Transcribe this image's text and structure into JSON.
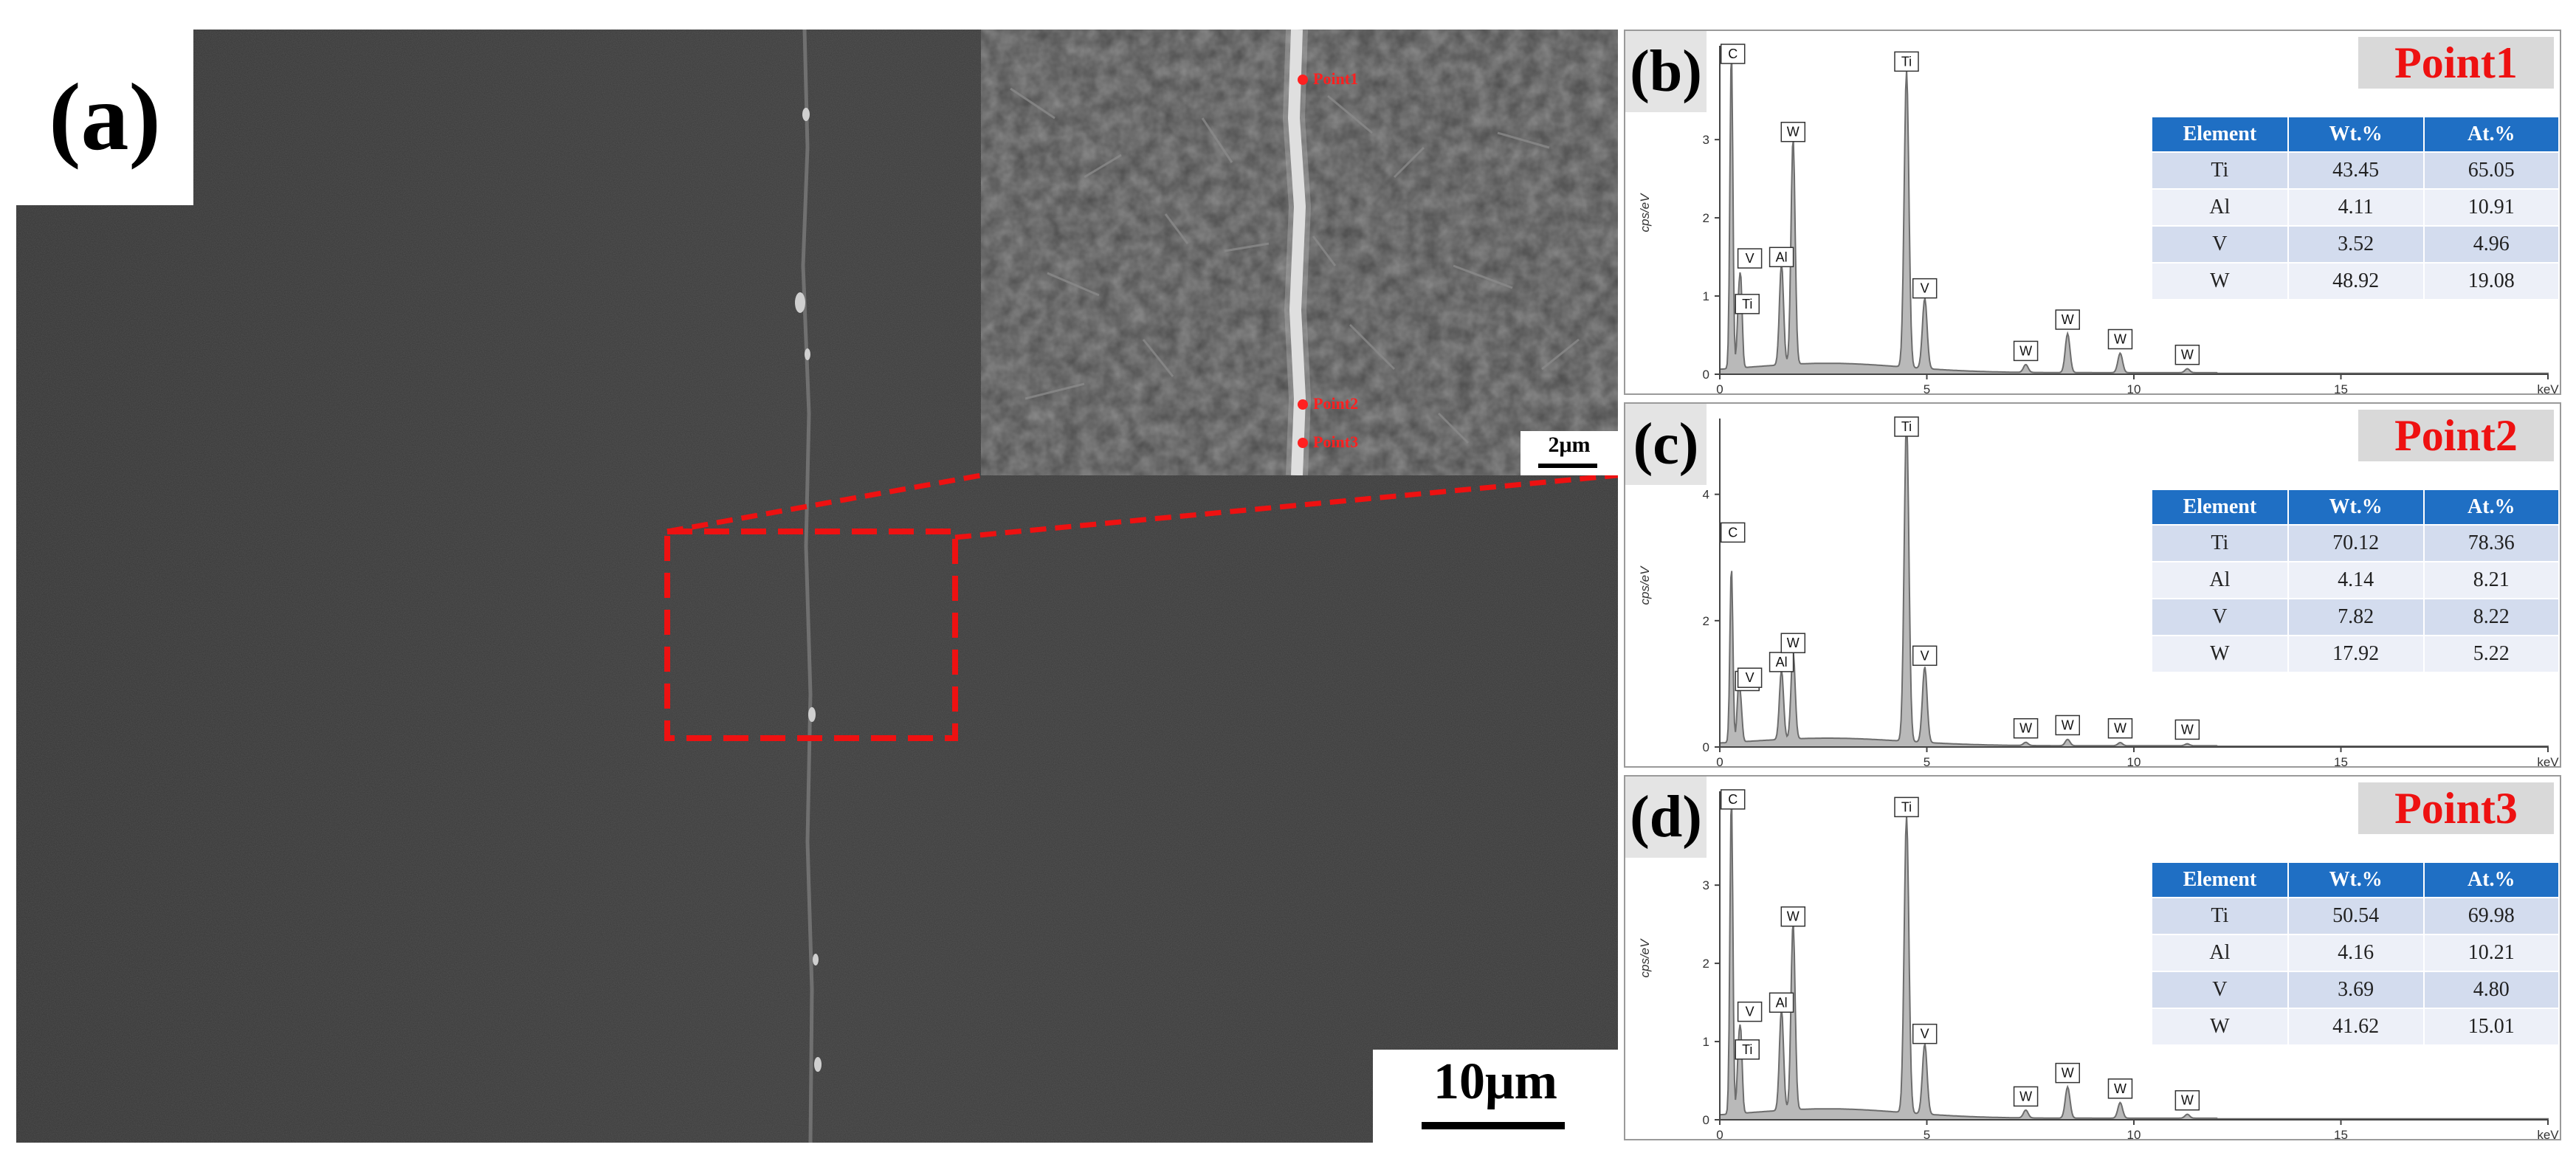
{
  "panel_a": {
    "label": "(a)",
    "scale_main": "10μm",
    "scale_inset": "2μm",
    "points": [
      "Point1",
      "Point2",
      "Point3"
    ]
  },
  "colors": {
    "accent_red": "#ee1111",
    "table_header": "#1f6fc4",
    "sem_background": "#3a3a3a"
  },
  "chart_data": [
    {
      "type": "area",
      "panel_label": "(b)",
      "title": "Point1",
      "ylabel": "cps/eV",
      "xlabel": "keV",
      "x_ticks": [
        "0",
        "5",
        "10",
        "15",
        "keV"
      ],
      "y_ticks": [
        "0",
        "1",
        "2",
        "3"
      ],
      "xlim": [
        0,
        20
      ],
      "ylim": [
        0,
        4.2
      ],
      "peaks": [
        {
          "name": "C",
          "x": 0.28,
          "y": 4.1
        },
        {
          "name": "Ti",
          "x": 0.45,
          "y": 0.7
        },
        {
          "name": "V",
          "x": 0.51,
          "y": 1.0
        },
        {
          "name": "Al",
          "x": 1.49,
          "y": 1.3
        },
        {
          "name": "W",
          "x": 1.77,
          "y": 2.9
        },
        {
          "name": "Ti",
          "x": 4.51,
          "y": 3.8
        },
        {
          "name": "V",
          "x": 4.95,
          "y": 0.9
        },
        {
          "name": "W",
          "x": 7.39,
          "y": 0.1
        },
        {
          "name": "W",
          "x": 8.4,
          "y": 0.5
        },
        {
          "name": "W",
          "x": 9.67,
          "y": 0.25
        },
        {
          "name": "W",
          "x": 11.29,
          "y": 0.05
        }
      ],
      "table": {
        "headers": [
          "Element",
          "Wt.%",
          "At.%"
        ],
        "rows": [
          [
            "Ti",
            "43.45",
            "65.05"
          ],
          [
            "Al",
            "4.11",
            "10.91"
          ],
          [
            "V",
            "3.52",
            "4.96"
          ],
          [
            "W",
            "48.92",
            "19.08"
          ]
        ]
      }
    },
    {
      "type": "area",
      "panel_label": "(c)",
      "title": "Point2",
      "ylabel": "cps/eV",
      "xlabel": "keV",
      "x_ticks": [
        "0",
        "5",
        "10",
        "15",
        "keV"
      ],
      "y_ticks": [
        "0",
        "2",
        "4"
      ],
      "xlim": [
        0,
        20
      ],
      "ylim": [
        0,
        5.2
      ],
      "peaks": [
        {
          "name": "C",
          "x": 0.28,
          "y": 2.8
        },
        {
          "name": "Ti",
          "x": 0.45,
          "y": 0.8
        },
        {
          "name": "V",
          "x": 0.51,
          "y": 0.5
        },
        {
          "name": "Al",
          "x": 1.49,
          "y": 1.1
        },
        {
          "name": "W",
          "x": 1.77,
          "y": 1.4
        },
        {
          "name": "Ti",
          "x": 4.51,
          "y": 5.1
        },
        {
          "name": "V",
          "x": 4.95,
          "y": 1.2
        },
        {
          "name": "W",
          "x": 7.39,
          "y": 0.05
        },
        {
          "name": "W",
          "x": 8.4,
          "y": 0.1
        },
        {
          "name": "W",
          "x": 9.67,
          "y": 0.05
        },
        {
          "name": "W",
          "x": 11.29,
          "y": 0.03
        }
      ],
      "table": {
        "headers": [
          "Element",
          "Wt.%",
          "At.%"
        ],
        "rows": [
          [
            "Ti",
            "70.12",
            "78.36"
          ],
          [
            "Al",
            "4.14",
            "8.21"
          ],
          [
            "V",
            "7.82",
            "8.22"
          ],
          [
            "W",
            "17.92",
            "5.22"
          ]
        ]
      }
    },
    {
      "type": "area",
      "panel_label": "(d)",
      "title": "Point3",
      "ylabel": "cps/eV",
      "xlabel": "keV",
      "x_ticks": [
        "0",
        "5",
        "10",
        "15",
        "keV"
      ],
      "y_ticks": [
        "0",
        "1",
        "2",
        "3"
      ],
      "xlim": [
        0,
        20
      ],
      "ylim": [
        0,
        4.2
      ],
      "peaks": [
        {
          "name": "C",
          "x": 0.28,
          "y": 4.1
        },
        {
          "name": "Ti",
          "x": 0.45,
          "y": 0.7
        },
        {
          "name": "V",
          "x": 0.51,
          "y": 0.9
        },
        {
          "name": "Al",
          "x": 1.49,
          "y": 1.3
        },
        {
          "name": "W",
          "x": 1.77,
          "y": 2.4
        },
        {
          "name": "Ti",
          "x": 4.51,
          "y": 3.8
        },
        {
          "name": "V",
          "x": 4.95,
          "y": 0.9
        },
        {
          "name": "W",
          "x": 7.39,
          "y": 0.1
        },
        {
          "name": "W",
          "x": 8.4,
          "y": 0.4
        },
        {
          "name": "W",
          "x": 9.67,
          "y": 0.2
        },
        {
          "name": "W",
          "x": 11.29,
          "y": 0.05
        }
      ],
      "table": {
        "headers": [
          "Element",
          "Wt.%",
          "At.%"
        ],
        "rows": [
          [
            "Ti",
            "50.54",
            "69.98"
          ],
          [
            "Al",
            "4.16",
            "10.21"
          ],
          [
            "V",
            "3.69",
            "4.80"
          ],
          [
            "W",
            "41.62",
            "15.01"
          ]
        ]
      }
    }
  ]
}
